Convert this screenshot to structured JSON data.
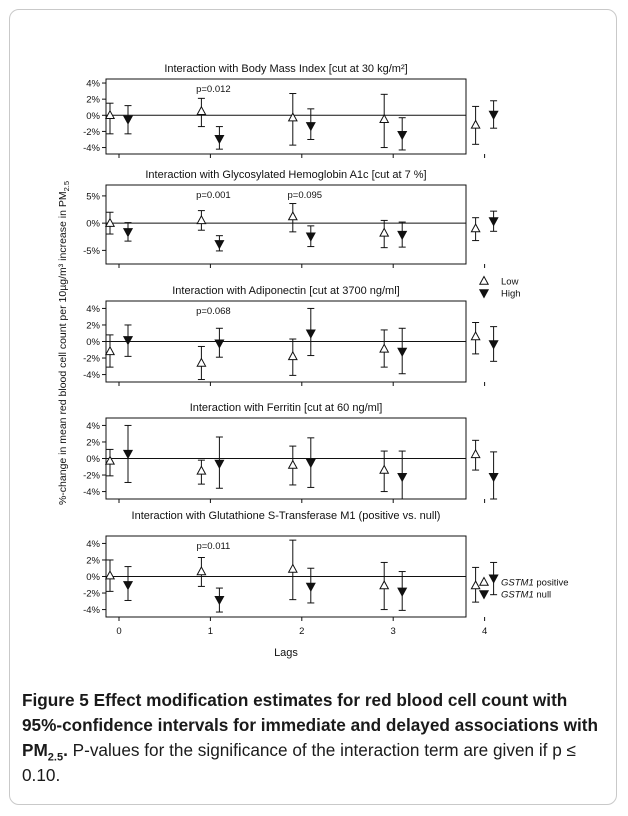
{
  "chart_data": {
    "type": "errorbar",
    "xlabel": "Lags",
    "ylabel_prefix": "%-change in mean red blood cell count per 10µg/m³ increase in PM",
    "ylabel_sub": "2.5",
    "x_ticks": [
      "0",
      "1",
      "2",
      "3",
      "4"
    ],
    "legend_bmi_glyc_adipo": [
      {
        "label": "Low",
        "marker": "open-triangle-up"
      },
      {
        "label": "High",
        "marker": "filled-triangle-down"
      }
    ],
    "legend_gstm1": [
      {
        "label_italic": "GSTM1",
        "label_rest": " positive",
        "marker": "open-triangle-up"
      },
      {
        "label_italic": "GSTM1",
        "label_rest": " null",
        "marker": "filled-triangle-down"
      }
    ],
    "panels": [
      {
        "title": "Interaction with Body Mass Index [cut at 30 kg/m²]",
        "ylim": [
          -4.8,
          4.5
        ],
        "yticks": [
          4,
          2,
          0,
          -2,
          -4
        ],
        "ytick_labels": [
          "4%",
          "2%",
          "0%",
          "-2%",
          "-4%"
        ],
        "annotations": [
          {
            "lag": 1,
            "text": "p=0.012"
          }
        ],
        "series": [
          {
            "group": "low",
            "values": [
              0.0,
              0.5,
              -0.3,
              -0.5,
              -1.2
            ],
            "lower": [
              -2.3,
              -1.4,
              -3.7,
              -4.0,
              -3.6
            ],
            "upper": [
              1.5,
              2.1,
              2.7,
              2.6,
              1.1
            ]
          },
          {
            "group": "high",
            "values": [
              -0.5,
              -2.9,
              -1.3,
              -2.4,
              0.1
            ],
            "lower": [
              -2.3,
              -4.2,
              -3.0,
              -4.3,
              -1.6
            ],
            "upper": [
              1.2,
              -1.4,
              0.8,
              -0.3,
              1.8
            ]
          }
        ]
      },
      {
        "title": "Interaction with Glycosylated Hemoglobin A1c [cut at 7 %]",
        "ylim": [
          -7.5,
          7.0
        ],
        "yticks": [
          5,
          0,
          -5
        ],
        "ytick_labels": [
          "5%",
          "0%",
          "-5%"
        ],
        "annotations": [
          {
            "lag": 1,
            "text": "p=0.001"
          },
          {
            "lag": 2,
            "text": "p=0.095"
          }
        ],
        "series": [
          {
            "group": "low",
            "values": [
              0.0,
              0.5,
              1.2,
              -1.8,
              -1.0
            ],
            "lower": [
              -2.0,
              -1.3,
              -1.6,
              -4.5,
              -3.2
            ],
            "upper": [
              2.0,
              2.3,
              3.6,
              0.5,
              1.0
            ]
          },
          {
            "group": "high",
            "values": [
              -1.6,
              -3.8,
              -2.4,
              -2.1,
              0.4
            ],
            "lower": [
              -3.3,
              -5.1,
              -4.3,
              -4.4,
              -1.5
            ],
            "upper": [
              0.1,
              -2.3,
              -0.5,
              0.2,
              2.2
            ]
          }
        ]
      },
      {
        "title": "Interaction with Adiponectin [cut at 3700 ng/ml]",
        "ylim": [
          -4.9,
          4.9
        ],
        "yticks": [
          4,
          2,
          0,
          -2,
          -4
        ],
        "ytick_labels": [
          "4%",
          "2%",
          "0%",
          "-2%",
          "-4%"
        ],
        "annotations": [
          {
            "lag": 1,
            "text": "p=0.068"
          }
        ],
        "series": [
          {
            "group": "low",
            "values": [
              -1.2,
              -2.6,
              -1.8,
              -0.9,
              0.6
            ],
            "lower": [
              -3.1,
              -4.6,
              -4.1,
              -3.1,
              -1.5
            ],
            "upper": [
              0.8,
              -0.6,
              0.3,
              1.4,
              2.3
            ]
          },
          {
            "group": "high",
            "values": [
              0.2,
              -0.2,
              1.0,
              -1.2,
              -0.3
            ],
            "lower": [
              -1.8,
              -1.9,
              -1.7,
              -3.9,
              -2.4
            ],
            "upper": [
              2.0,
              1.6,
              4.0,
              1.6,
              1.8
            ]
          }
        ]
      },
      {
        "title": "Interaction with Ferritin [cut at 60 ng/ml]",
        "ylim": [
          -4.9,
          4.9
        ],
        "yticks": [
          4,
          2,
          0,
          -2,
          -4
        ],
        "ytick_labels": [
          "4%",
          "2%",
          "0%",
          "-2%",
          "-4%"
        ],
        "annotations": [],
        "series": [
          {
            "group": "low",
            "values": [
              -0.3,
              -1.5,
              -0.8,
              -1.4,
              0.5
            ],
            "lower": [
              -2.1,
              -3.1,
              -3.2,
              -4.0,
              -1.4
            ],
            "upper": [
              1.1,
              -0.2,
              1.5,
              0.9,
              2.2
            ]
          },
          {
            "group": "high",
            "values": [
              0.6,
              -0.6,
              -0.5,
              -2.2,
              -2.2
            ],
            "lower": [
              -2.9,
              -3.6,
              -3.5,
              -4.9,
              -4.9
            ],
            "upper": [
              4.0,
              2.6,
              2.5,
              0.9,
              0.8
            ]
          }
        ]
      },
      {
        "title": "Interaction with Glutathione S-Transferase M1 (positive vs. null)",
        "ylim": [
          -4.9,
          4.9
        ],
        "yticks": [
          4,
          2,
          0,
          -2,
          -4
        ],
        "ytick_labels": [
          "4%",
          "2%",
          "0%",
          "-2%",
          "-4%"
        ],
        "annotations": [
          {
            "lag": 1,
            "text": "p=0.011"
          }
        ],
        "series": [
          {
            "group": "low",
            "values": [
              0.1,
              0.6,
              0.9,
              -1.1,
              -1.1
            ],
            "lower": [
              -1.8,
              -1.2,
              -2.8,
              -4.0,
              -3.1
            ],
            "upper": [
              2.0,
              2.3,
              4.4,
              1.7,
              1.1
            ]
          },
          {
            "group": "high",
            "values": [
              -1.0,
              -2.8,
              -1.2,
              -1.8,
              -0.2
            ],
            "lower": [
              -2.9,
              -4.3,
              -3.2,
              -4.1,
              -2.2
            ],
            "upper": [
              1.2,
              -1.4,
              1.0,
              0.6,
              1.7
            ]
          }
        ]
      }
    ]
  },
  "caption": {
    "lead": "Figure 5 Effect modification estimates for red blood cell count with 95%-confidence intervals for immediate and delayed associations with PM",
    "lead_sub": "2.5",
    "lead_end": ".",
    "body": " P-values for the significance of the interaction term are given if p ≤ 0.10."
  }
}
